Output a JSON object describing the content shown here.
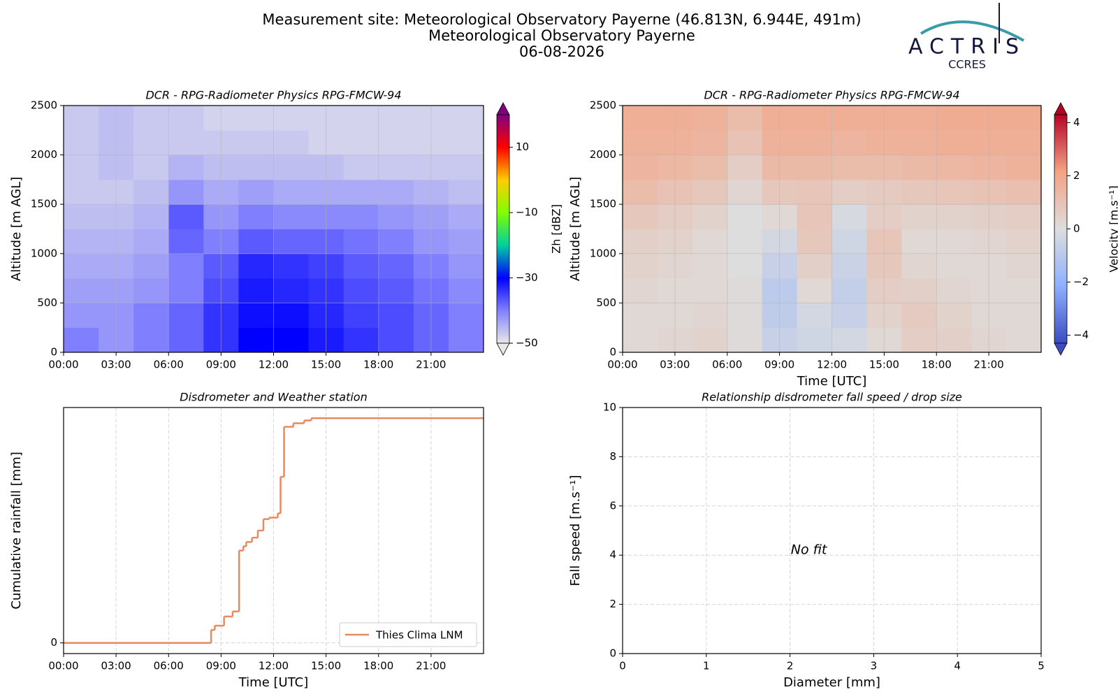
{
  "header": {
    "title_lines": [
      "Measurement site: Meteorological Observatory Payerne (46.813N, 6.944E, 491m)",
      "Meteorological Observatory Payerne",
      "06-08-2026"
    ],
    "logo": "ACTRIS",
    "logo_sub": "CCRES"
  },
  "chart_data": [
    {
      "type": "heatmap",
      "title": "DCR - RPG-Radiometer Physics RPG-FMCW-94",
      "ylabel": "Altitude [m AGL]",
      "xlim": [
        0,
        24
      ],
      "xticks": [
        {
          "value": 0,
          "label": "00:00"
        },
        {
          "value": 3,
          "label": "03:00"
        },
        {
          "value": 6,
          "label": "06:00"
        },
        {
          "value": 9,
          "label": "09:00"
        },
        {
          "value": 12,
          "label": "12:00"
        },
        {
          "value": 15,
          "label": "15:00"
        },
        {
          "value": 18,
          "label": "18:00"
        },
        {
          "value": 21,
          "label": "21:00"
        }
      ],
      "ylim": [
        0,
        2500
      ],
      "yticks": [
        0,
        500,
        1000,
        1500,
        2000,
        2500
      ],
      "grid": true,
      "x_edges": [
        0,
        2,
        4,
        6,
        8,
        10,
        12,
        14,
        16,
        18,
        20,
        22,
        24
      ],
      "y_edges": [
        0,
        250,
        500,
        750,
        1000,
        1250,
        1500,
        1750,
        2000,
        2250,
        2500
      ],
      "z": [
        [
          -40,
          -42,
          -40,
          -38,
          -34,
          -30,
          -30,
          -32,
          -34,
          -36,
          -38,
          -40
        ],
        [
          -42,
          -42,
          -40,
          -38,
          -34,
          -31,
          -31,
          -33,
          -35,
          -36,
          -38,
          -40
        ],
        [
          -43,
          -43,
          -42,
          -40,
          -36,
          -32,
          -33,
          -34,
          -36,
          -37,
          -39,
          -41
        ],
        [
          -44,
          -44,
          -43,
          -40,
          -37,
          -33,
          -34,
          -35,
          -37,
          -38,
          -40,
          -42
        ],
        [
          -45,
          -45,
          -44,
          -38,
          -40,
          -37,
          -38,
          -38,
          -39,
          -40,
          -42,
          -43
        ],
        [
          -46,
          -46,
          -45,
          -37,
          -42,
          -40,
          -41,
          -41,
          -41,
          -42,
          -43,
          -44
        ],
        [
          -47,
          -47,
          -46,
          -42,
          -44,
          -43,
          -44,
          -44,
          -44,
          -44,
          -45,
          -46
        ],
        [
          -47,
          -46,
          -47,
          -45,
          -46,
          -46,
          -46,
          -46,
          -47,
          -47,
          -47,
          -47
        ],
        [
          -47,
          -46,
          -47,
          -47,
          -47,
          -47,
          -47,
          -48,
          -48,
          -48,
          -48,
          -48
        ],
        [
          -47,
          -46,
          -47,
          -47,
          -48,
          -48,
          -48,
          -48,
          -48,
          -48,
          -48,
          -48
        ]
      ],
      "colorbar": {
        "label": "Zh [dBZ]",
        "lim": [
          -50,
          20
        ],
        "ticks": [
          {
            "value": -50,
            "label": "−50"
          },
          {
            "value": -30,
            "label": "−30"
          },
          {
            "value": -10,
            "label": "−10"
          },
          10
        ],
        "colors": [
          "#e8e8e8",
          "#8080ff",
          "#0000ff",
          "#00d0a0",
          "#80ff00",
          "#ffcc00",
          "#ff0000",
          "#800080"
        ]
      }
    },
    {
      "type": "heatmap",
      "title": "DCR - RPG-Radiometer Physics RPG-FMCW-94",
      "xlabel": "Time [UTC]",
      "ylabel": "Altitude [m AGL]",
      "xlim": [
        0,
        24
      ],
      "xticks": [
        {
          "value": 0,
          "label": "00:00"
        },
        {
          "value": 3,
          "label": "03:00"
        },
        {
          "value": 6,
          "label": "06:00"
        },
        {
          "value": 9,
          "label": "09:00"
        },
        {
          "value": 12,
          "label": "12:00"
        },
        {
          "value": 15,
          "label": "15:00"
        },
        {
          "value": 18,
          "label": "18:00"
        },
        {
          "value": 21,
          "label": "21:00"
        }
      ],
      "ylim": [
        0,
        2500
      ],
      "yticks": [
        0,
        500,
        1000,
        1500,
        2000,
        2500
      ],
      "grid": true,
      "x_edges": [
        0,
        2,
        4,
        6,
        8,
        10,
        12,
        14,
        16,
        18,
        20,
        22,
        24
      ],
      "y_edges": [
        0,
        250,
        500,
        750,
        1000,
        1250,
        1500,
        1750,
        2000,
        2250,
        2500
      ],
      "z": [
        [
          0.2,
          0.3,
          0.4,
          0.1,
          -0.6,
          -0.4,
          -0.3,
          0.2,
          0.6,
          0.5,
          0.3,
          0.2
        ],
        [
          0.2,
          0.2,
          0.3,
          0.1,
          -0.8,
          -0.3,
          -0.6,
          0.4,
          0.7,
          0.4,
          0.2,
          0.2
        ],
        [
          0.3,
          0.2,
          0.2,
          0.1,
          -0.9,
          0.2,
          -0.7,
          0.6,
          0.5,
          0.3,
          0.2,
          0.2
        ],
        [
          0.4,
          0.3,
          0.2,
          0,
          -0.6,
          0.5,
          -0.5,
          0.8,
          0.3,
          0.2,
          0.2,
          0.3
        ],
        [
          0.5,
          0.4,
          0.2,
          0,
          -0.3,
          0.8,
          -0.4,
          0.9,
          0.2,
          0.2,
          0.3,
          0.4
        ],
        [
          0.8,
          0.6,
          0.4,
          0,
          0.2,
          0.9,
          -0.2,
          0.6,
          0.4,
          0.4,
          0.5,
          0.6
        ],
        [
          1.2,
          1.0,
          0.8,
          0.3,
          0.8,
          0.9,
          0.6,
          0.7,
          0.8,
          0.9,
          1.0,
          1.1
        ],
        [
          1.5,
          1.4,
          1.2,
          0.6,
          1.3,
          1.3,
          1.2,
          1.2,
          1.3,
          1.4,
          1.5,
          1.6
        ],
        [
          1.6,
          1.6,
          1.5,
          1.0,
          1.6,
          1.6,
          1.5,
          1.6,
          1.6,
          1.7,
          1.7,
          1.7
        ],
        [
          1.7,
          1.7,
          1.6,
          1.2,
          1.7,
          1.7,
          1.7,
          1.7,
          1.7,
          1.8,
          1.8,
          1.8
        ]
      ],
      "colorbar": {
        "label": "Velocity [m.s⁻¹]",
        "lim": [
          -4.3,
          4.3
        ],
        "ticks": [
          {
            "value": -4,
            "label": "−4"
          },
          {
            "value": -2,
            "label": "−2"
          },
          0,
          2,
          4
        ],
        "colors": [
          "#3b4cc0",
          "#8db0fe",
          "#dddddd",
          "#f4a384",
          "#b40426"
        ]
      }
    },
    {
      "type": "line",
      "title": "Disdrometer and Weather station",
      "xlabel": "Time [UTC]",
      "ylabel": "Cumulative rainfall [mm]",
      "xlim": [
        0,
        24
      ],
      "xticks": [
        {
          "value": 0,
          "label": "00:00"
        },
        {
          "value": 3,
          "label": "03:00"
        },
        {
          "value": 6,
          "label": "06:00"
        },
        {
          "value": 9,
          "label": "09:00"
        },
        {
          "value": 12,
          "label": "12:00"
        },
        {
          "value": 15,
          "label": "15:00"
        },
        {
          "value": 18,
          "label": "18:00"
        },
        {
          "value": 21,
          "label": "21:00"
        }
      ],
      "ylim": [
        -0.57,
        12.57
      ],
      "yticks": [
        0
      ],
      "grid": true,
      "drawstyle": "steps-post",
      "legend": "lower right",
      "series": [
        {
          "name": "Thies Clima LNM",
          "color": "#e9895f",
          "x": [
            0,
            8.43,
            8.64,
            9.17,
            9.66,
            10.03,
            10.27,
            10.44,
            10.77,
            11.1,
            11.42,
            11.75,
            12.24,
            12.4,
            12.6,
            13.13,
            13.75,
            14.16
          ],
          "values": [
            0,
            0.69,
            0.92,
            1.41,
            1.68,
            4.93,
            5.16,
            5.39,
            5.62,
            6.0,
            6.61,
            6.69,
            6.92,
            8.87,
            11.54,
            11.73,
            11.88,
            12.0
          ]
        }
      ]
    },
    {
      "type": "scatter",
      "title": "Relationship disdrometer fall speed / drop size",
      "xlabel": "Diameter [mm]",
      "ylabel": "Fall speed [m.s⁻¹]",
      "xlim": [
        0,
        5
      ],
      "xticks": [
        0,
        1,
        2,
        3,
        4,
        5
      ],
      "ylim": [
        0,
        10
      ],
      "yticks": [
        0,
        2,
        4,
        6,
        8,
        10
      ],
      "grid": true,
      "annotation": "No fit"
    }
  ]
}
